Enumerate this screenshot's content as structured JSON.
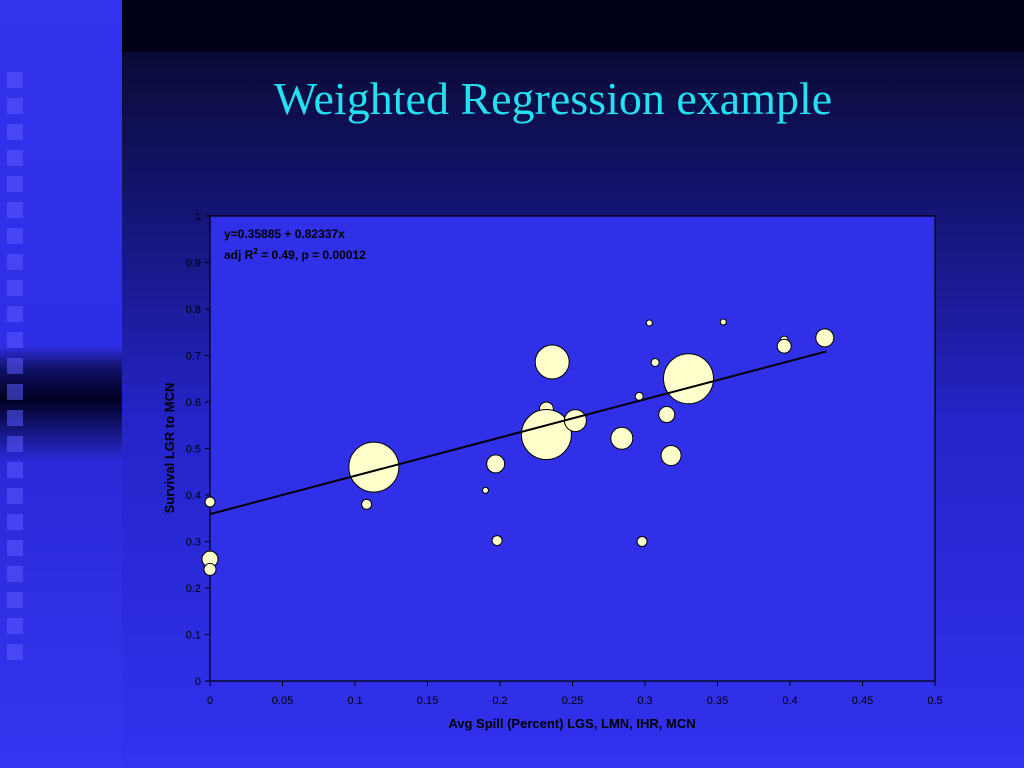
{
  "slide": {
    "title": "Weighted Regression example",
    "colors": {
      "title": "#24e0f0",
      "plot_area": "#3030e8",
      "bubble_fill": "#ffffcc",
      "line": "#000000"
    }
  },
  "chart_data": {
    "type": "scatter",
    "xlabel": "Avg Spill (Percent) LGS, LMN, IHR, MCN",
    "ylabel": "Survival LGR to MCN",
    "xlim": [
      0,
      0.5
    ],
    "ylim": [
      0,
      1
    ],
    "x_ticks": [
      "0",
      "0.05",
      "0.1",
      "0.15",
      "0.2",
      "0.25",
      "0.3",
      "0.35",
      "0.4",
      "0.45",
      "0.5"
    ],
    "y_ticks": [
      "0",
      "0.1",
      "0.2",
      "0.3",
      "0.4",
      "0.5",
      "0.6",
      "0.7",
      "0.8",
      "0.9",
      "1"
    ],
    "grid": false,
    "annotation": {
      "equation": "y=0.35885 + 0.82337x",
      "stats_prefix": "adj R",
      "stats_sup": "2",
      "stats_suffix": " = 0.49, p = 0.00012"
    },
    "regression": {
      "intercept": 0.35885,
      "slope": 0.82337,
      "x_range": [
        0,
        0.425
      ]
    },
    "points": [
      {
        "x": 0.0,
        "y": 0.385,
        "r": 5
      },
      {
        "x": 0.0,
        "y": 0.262,
        "r": 8
      },
      {
        "x": 0.0,
        "y": 0.24,
        "r": 6
      },
      {
        "x": 0.108,
        "y": 0.38,
        "r": 5
      },
      {
        "x": 0.113,
        "y": 0.46,
        "r": 25
      },
      {
        "x": 0.19,
        "y": 0.41,
        "r": 3
      },
      {
        "x": 0.197,
        "y": 0.467,
        "r": 9
      },
      {
        "x": 0.198,
        "y": 0.302,
        "r": 5
      },
      {
        "x": 0.223,
        "y": 0.54,
        "r": 5
      },
      {
        "x": 0.232,
        "y": 0.585,
        "r": 7
      },
      {
        "x": 0.232,
        "y": 0.53,
        "r": 25
      },
      {
        "x": 0.236,
        "y": 0.686,
        "r": 17
      },
      {
        "x": 0.252,
        "y": 0.56,
        "r": 11
      },
      {
        "x": 0.284,
        "y": 0.522,
        "r": 11
      },
      {
        "x": 0.296,
        "y": 0.612,
        "r": 4
      },
      {
        "x": 0.298,
        "y": 0.3,
        "r": 5
      },
      {
        "x": 0.303,
        "y": 0.77,
        "r": 3
      },
      {
        "x": 0.307,
        "y": 0.685,
        "r": 4
      },
      {
        "x": 0.315,
        "y": 0.573,
        "r": 8
      },
      {
        "x": 0.318,
        "y": 0.485,
        "r": 10
      },
      {
        "x": 0.33,
        "y": 0.65,
        "r": 25
      },
      {
        "x": 0.354,
        "y": 0.772,
        "r": 3
      },
      {
        "x": 0.396,
        "y": 0.733,
        "r": 4
      },
      {
        "x": 0.396,
        "y": 0.72,
        "r": 7
      },
      {
        "x": 0.424,
        "y": 0.738,
        "r": 9
      }
    ]
  }
}
